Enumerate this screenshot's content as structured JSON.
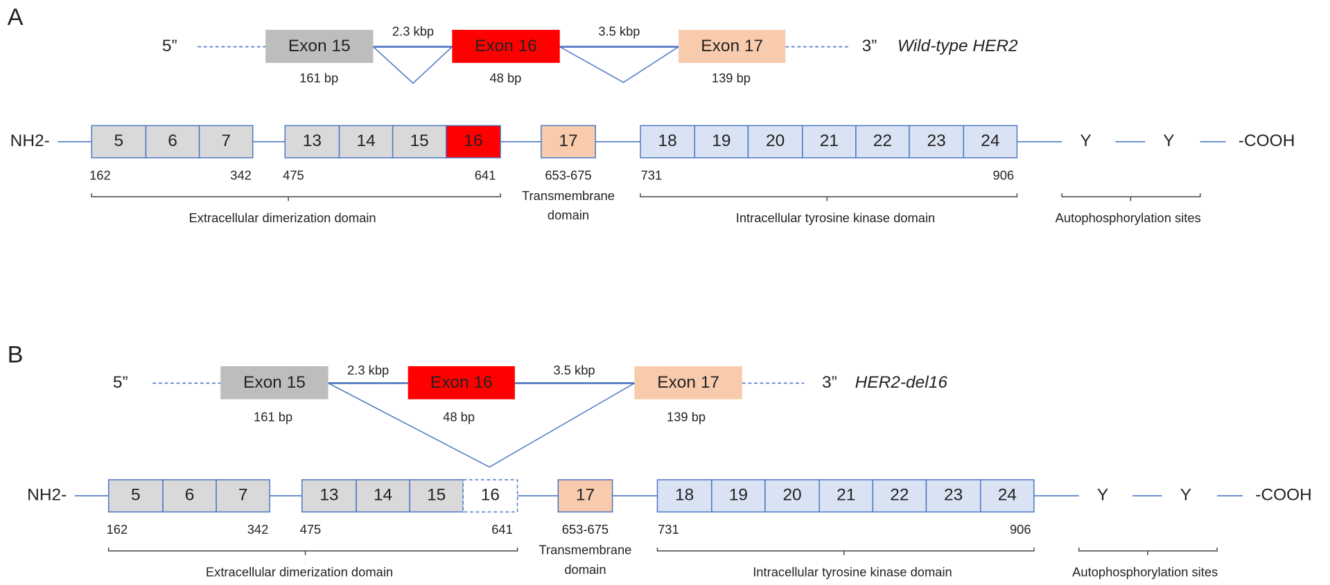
{
  "panels": [
    {
      "label": "A",
      "five_prime": "5”",
      "three_prime": "3”",
      "isoform": "Wild-type HER2",
      "exons": [
        {
          "name": "Exon 15",
          "size": "161 bp"
        },
        {
          "name": "Exon 16",
          "size": "48 bp"
        },
        {
          "name": "Exon 17",
          "size": "139 bp"
        }
      ],
      "introns": [
        "2.3 kbp",
        "3.5 kbp"
      ],
      "protein": {
        "n_term": "NH2-",
        "c_term": "-COOH",
        "boxes": [
          "5",
          "6",
          "7",
          "13",
          "14",
          "15",
          "16",
          "17",
          "18",
          "19",
          "20",
          "21",
          "22",
          "23",
          "24"
        ],
        "positions": [
          "162",
          "342",
          "475",
          "641",
          "653-675",
          "731",
          "906"
        ],
        "sites": [
          "Y",
          "Y"
        ],
        "domains": {
          "extracellular": "Extracellular dimerization domain",
          "transmembrane": [
            "Transmembrane",
            "domain"
          ],
          "kinase": "Intracellular tyrosine kinase domain",
          "autophosphorylation": "Autophosphorylation sites"
        }
      }
    },
    {
      "label": "B",
      "five_prime": "5”",
      "three_prime": "3”",
      "isoform": "HER2-del16",
      "exons": [
        {
          "name": "Exon 15",
          "size": "161 bp"
        },
        {
          "name": "Exon 16",
          "size": "48 bp"
        },
        {
          "name": "Exon 17",
          "size": "139 bp"
        }
      ],
      "introns": [
        "2.3 kbp",
        "3.5 kbp"
      ],
      "protein": {
        "n_term": "NH2-",
        "c_term": "-COOH",
        "boxes": [
          "5",
          "6",
          "7",
          "13",
          "14",
          "15",
          "16",
          "17",
          "18",
          "19",
          "20",
          "21",
          "22",
          "23",
          "24"
        ],
        "positions": [
          "162",
          "342",
          "475",
          "641",
          "653-675",
          "731",
          "906"
        ],
        "sites": [
          "Y",
          "Y"
        ],
        "domains": {
          "extracellular": "Extracellular dimerization domain",
          "transmembrane": [
            "Transmembrane",
            "domain"
          ],
          "kinase": "Intracellular tyrosine kinase domain",
          "autophosphorylation": "Autophosphorylation sites"
        }
      }
    }
  ]
}
